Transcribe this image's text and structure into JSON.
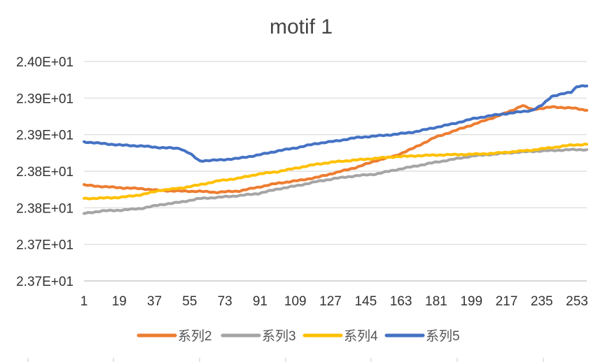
{
  "chart_data": {
    "type": "line",
    "title": "motif 1",
    "xlabel": "",
    "ylabel": "",
    "x_range": [
      1,
      258
    ],
    "x_ticks": [
      "1",
      "19",
      "37",
      "55",
      "73",
      "91",
      "109",
      "127",
      "145",
      "163",
      "181",
      "199",
      "217",
      "235",
      "253"
    ],
    "y_ticks": [
      "2.40E+01",
      "2.39E+01",
      "2.39E+01",
      "2.38E+01",
      "2.38E+01",
      "2.37E+01",
      "2.37E+01"
    ],
    "ylim": [
      23.735,
      24.0
    ],
    "grid": "horizontal",
    "legend_position": "bottom",
    "series": [
      {
        "name": "系列2",
        "color": "#ED7D31",
        "points": [
          [
            1,
            23.8508
          ],
          [
            10,
            23.849
          ],
          [
            20,
            23.8475
          ],
          [
            30,
            23.8465
          ],
          [
            40,
            23.8442
          ],
          [
            50,
            23.8435
          ],
          [
            60,
            23.8432
          ],
          [
            68,
            23.842
          ],
          [
            80,
            23.8435
          ],
          [
            90,
            23.8482
          ],
          [
            100,
            23.853
          ],
          [
            110,
            23.856
          ],
          [
            120,
            23.86
          ],
          [
            130,
            23.866
          ],
          [
            140,
            23.872
          ],
          [
            150,
            23.88
          ],
          [
            160,
            23.886
          ],
          [
            170,
            23.896
          ],
          [
            180,
            23.908
          ],
          [
            190,
            23.916
          ],
          [
            200,
            23.924
          ],
          [
            210,
            23.932
          ],
          [
            220,
            23.941
          ],
          [
            225,
            23.947
          ],
          [
            230,
            23.942
          ],
          [
            240,
            23.945
          ],
          [
            250,
            23.944
          ],
          [
            258,
            23.941
          ]
        ]
      },
      {
        "name": "系列3",
        "color": "#A5A5A5",
        "points": [
          [
            1,
            23.8165
          ],
          [
            10,
            23.8195
          ],
          [
            20,
            23.8205
          ],
          [
            30,
            23.8225
          ],
          [
            40,
            23.827
          ],
          [
            50,
            23.83
          ],
          [
            60,
            23.8345
          ],
          [
            70,
            23.836
          ],
          [
            80,
            23.838
          ],
          [
            90,
            23.8405
          ],
          [
            100,
            23.846
          ],
          [
            110,
            23.85
          ],
          [
            120,
            23.855
          ],
          [
            130,
            23.859
          ],
          [
            140,
            23.862
          ],
          [
            150,
            23.864
          ],
          [
            160,
            23.869
          ],
          [
            170,
            23.8735
          ],
          [
            180,
            23.878
          ],
          [
            190,
            23.882
          ],
          [
            200,
            23.886
          ],
          [
            210,
            23.888
          ],
          [
            220,
            23.89
          ],
          [
            230,
            23.8915
          ],
          [
            240,
            23.8925
          ],
          [
            250,
            23.8935
          ],
          [
            258,
            23.8935
          ]
        ]
      },
      {
        "name": "系列4",
        "color": "#FFC000",
        "points": [
          [
            1,
            23.8345
          ],
          [
            10,
            23.835
          ],
          [
            20,
            23.836
          ],
          [
            30,
            23.839
          ],
          [
            40,
            23.8445
          ],
          [
            50,
            23.847
          ],
          [
            60,
            23.851
          ],
          [
            70,
            23.856
          ],
          [
            80,
            23.859
          ],
          [
            90,
            23.864
          ],
          [
            100,
            23.867
          ],
          [
            110,
            23.8715
          ],
          [
            120,
            23.876
          ],
          [
            130,
            23.879
          ],
          [
            140,
            23.881
          ],
          [
            150,
            23.883
          ],
          [
            160,
            23.885
          ],
          [
            170,
            23.886
          ],
          [
            180,
            23.887
          ],
          [
            190,
            23.8875
          ],
          [
            200,
            23.888
          ],
          [
            210,
            23.889
          ],
          [
            220,
            23.891
          ],
          [
            230,
            23.893
          ],
          [
            240,
            23.896
          ],
          [
            250,
            23.899
          ],
          [
            258,
            23.9
          ]
        ]
      },
      {
        "name": "系列5",
        "color": "#4472C4",
        "points": [
          [
            1,
            23.903
          ],
          [
            10,
            23.901
          ],
          [
            20,
            23.899
          ],
          [
            30,
            23.898
          ],
          [
            40,
            23.896
          ],
          [
            50,
            23.895
          ],
          [
            55,
            23.889
          ],
          [
            60,
            23.88
          ],
          [
            70,
            23.881
          ],
          [
            80,
            23.883
          ],
          [
            90,
            23.887
          ],
          [
            100,
            23.892
          ],
          [
            110,
            23.896
          ],
          [
            120,
            23.901
          ],
          [
            130,
            23.904
          ],
          [
            140,
            23.908
          ],
          [
            150,
            23.91
          ],
          [
            160,
            23.912
          ],
          [
            170,
            23.915
          ],
          [
            180,
            23.92
          ],
          [
            190,
            23.925
          ],
          [
            200,
            23.931
          ],
          [
            210,
            23.935
          ],
          [
            220,
            23.938
          ],
          [
            230,
            23.941
          ],
          [
            235,
            23.947
          ],
          [
            240,
            23.958
          ],
          [
            250,
            23.963
          ],
          [
            253,
            23.97
          ],
          [
            258,
            23.9705
          ]
        ]
      }
    ]
  }
}
